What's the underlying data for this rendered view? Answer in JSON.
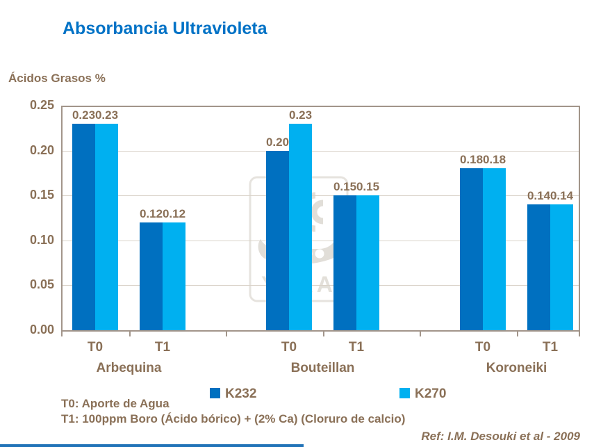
{
  "page": {
    "title": "Absorbancia Ultravioleta"
  },
  "colors": {
    "title_blue": "#0072C6",
    "text_brown": "#8A7057",
    "k232": "#0070C0",
    "k270": "#00B0F0",
    "gridline": "#D9D2C8",
    "plot_border": "#A2958A",
    "footer_stripe": "#2173B8"
  },
  "chart_data": {
    "type": "bar",
    "title": "Absorbancia Ultravioleta",
    "ylabel": "Ácidos Grasos %",
    "xlabel": "",
    "ylim": [
      0,
      0.25
    ],
    "ytick_step": 0.05,
    "yticks": [
      "0.25",
      "0.20",
      "0.15",
      "0.10",
      "0.05",
      "0.00"
    ],
    "grid": true,
    "legend_position": "bottom",
    "bar_labels": true,
    "series": [
      {
        "name": "K232",
        "color": "#0070C0"
      },
      {
        "name": "K270",
        "color": "#00B0F0"
      }
    ],
    "groups": [
      {
        "label": "Arbequina",
        "categories": [
          "T0",
          "T1"
        ],
        "values": {
          "K232": [
            0.23,
            0.12
          ],
          "K270": [
            0.23,
            0.12
          ]
        }
      },
      {
        "label": "Bouteillan",
        "categories": [
          "T0",
          "T1"
        ],
        "values": {
          "K232": [
            0.2,
            0.15
          ],
          "K270": [
            0.23,
            0.15
          ]
        }
      },
      {
        "label": "Koroneiki",
        "categories": [
          "T0",
          "T1"
        ],
        "values": {
          "K232": [
            0.18,
            0.14
          ],
          "K270": [
            0.18,
            0.14
          ]
        }
      }
    ]
  },
  "legend": {
    "items": [
      {
        "label": "K232",
        "color": "#0070C0"
      },
      {
        "label": "K270",
        "color": "#00B0F0"
      }
    ]
  },
  "notes": {
    "t0": "T0: Aporte de Agua",
    "t1": "T1: 100ppm Boro (Ácido bórico) + (2% Ca) (Cloruro de calcio)",
    "ref": "Ref:  I.M. Desouki et al - 2009"
  },
  "watermark": {
    "text": "YARA"
  }
}
